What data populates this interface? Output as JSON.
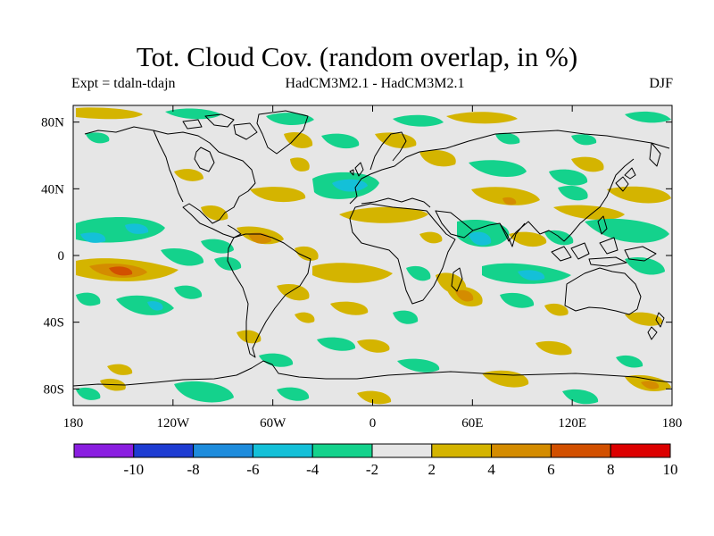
{
  "title": "Tot. Cloud Cov. (random overlap, in %)",
  "experiment_label": "Expt = tdaln-tdajn",
  "models_label": "HadCM3M2.1 - HadCM3M2.1",
  "season_label": "DJF",
  "map": {
    "projection": "cylindrical equidistant",
    "background_color": "#e6e6e6",
    "lon_ticks": [
      "180",
      "120W",
      "60W",
      "0",
      "60E",
      "120E",
      "180"
    ],
    "lat_ticks": [
      "80N",
      "40N",
      "0",
      "40S",
      "80S"
    ]
  },
  "colorbar": {
    "labels": [
      "-10",
      "-8",
      "-6",
      "-4",
      "-2",
      "2",
      "4",
      "6",
      "8",
      "10"
    ],
    "colors": [
      "#8a1ee0",
      "#1e3cd2",
      "#1e8cdc",
      "#14c0d8",
      "#14d28c",
      "#e6e6e6",
      "#d4b400",
      "#d48c00",
      "#d25000",
      "#dc0000"
    ]
  },
  "palette": {
    "green": "#14d28c",
    "cyan": "#14c0d8",
    "blue": "#1e8cdc",
    "yellow": "#d4b400",
    "orange": "#d48c00",
    "red_orange": "#d25000",
    "coastline": "#000000"
  }
}
